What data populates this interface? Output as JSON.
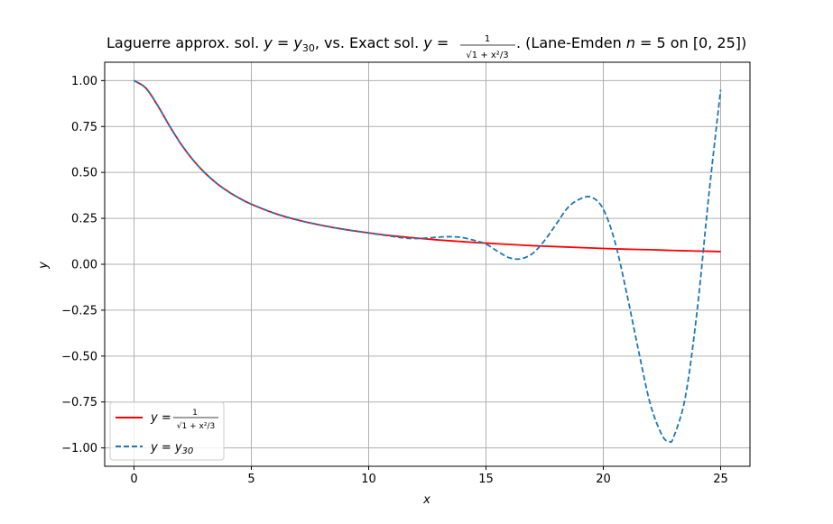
{
  "chart_data": {
    "type": "line",
    "title": {
      "prefix": "Laguerre approx. sol. ",
      "approx_label": "y = y",
      "approx_sub": "30",
      "middle": ", vs. Exact sol. ",
      "exact_lhs": "y = ",
      "frac_num": "1",
      "frac_den": "√1 + x²/3",
      "suffix": ". (Lane-Emden ",
      "n_label": "n",
      "n_value": " = 5 on [0, 25])"
    },
    "xlabel": "x",
    "ylabel": "y",
    "xlim": [
      -1.25,
      26.25
    ],
    "ylim": [
      -1.1,
      1.1
    ],
    "xticks": [
      0,
      5,
      10,
      15,
      20,
      25
    ],
    "xtick_labels": [
      "0",
      "5",
      "10",
      "15",
      "20",
      "25"
    ],
    "yticks": [
      1.0,
      0.75,
      0.5,
      0.25,
      0.0,
      -0.25,
      -0.5,
      -0.75,
      -1.0
    ],
    "ytick_labels": [
      "1.00",
      "0.75",
      "0.50",
      "0.25",
      "0.00",
      "−0.25",
      "−0.50",
      "−0.75",
      "−1.00"
    ],
    "grid": true,
    "legend_position": "lower-left",
    "series": [
      {
        "name": "y = 1/√(1 + x²/3)",
        "legend_lhs": "y = ",
        "legend_num": "1",
        "legend_den": "√1 + x²/3",
        "color": "#ff0000",
        "style": "solid",
        "x": [
          0,
          0.5,
          1,
          1.5,
          2,
          2.5,
          3,
          3.5,
          4,
          4.5,
          5,
          6,
          7,
          8,
          9,
          10,
          11,
          12,
          13,
          14,
          15,
          16,
          17,
          18,
          19,
          20,
          21,
          22,
          23,
          24,
          25
        ],
        "y": [
          1.0,
          0.96,
          0.866,
          0.756,
          0.655,
          0.57,
          0.5,
          0.443,
          0.397,
          0.359,
          0.327,
          0.277,
          0.24,
          0.212,
          0.189,
          0.171,
          0.155,
          0.143,
          0.132,
          0.123,
          0.115,
          0.108,
          0.101,
          0.096,
          0.091,
          0.086,
          0.082,
          0.079,
          0.075,
          0.072,
          0.069
        ]
      },
      {
        "name": "y = y30",
        "legend_lhs": "y = y",
        "legend_sub": "30",
        "color": "#1f77b4",
        "style": "dashed",
        "x": [
          0,
          0.5,
          1,
          1.5,
          2,
          2.5,
          3,
          3.5,
          4,
          4.5,
          5,
          6,
          7,
          8,
          9,
          10,
          11,
          11.5,
          12,
          12.5,
          13,
          13.5,
          14,
          14.5,
          15,
          15.5,
          16,
          16.5,
          17,
          17.5,
          18,
          18.5,
          19,
          19.5,
          20,
          20.5,
          21,
          21.5,
          22,
          22.5,
          22.8,
          23,
          23.5,
          24,
          24.5,
          25
        ],
        "y": [
          1.0,
          0.96,
          0.866,
          0.756,
          0.655,
          0.57,
          0.5,
          0.443,
          0.397,
          0.359,
          0.327,
          0.277,
          0.24,
          0.212,
          0.189,
          0.17,
          0.152,
          0.143,
          0.14,
          0.143,
          0.148,
          0.15,
          0.145,
          0.13,
          0.11,
          0.07,
          0.035,
          0.03,
          0.06,
          0.13,
          0.22,
          0.31,
          0.355,
          0.365,
          0.3,
          0.12,
          -0.16,
          -0.47,
          -0.76,
          -0.93,
          -0.965,
          -0.94,
          -0.72,
          -0.25,
          0.38,
          0.95
        ]
      }
    ]
  }
}
